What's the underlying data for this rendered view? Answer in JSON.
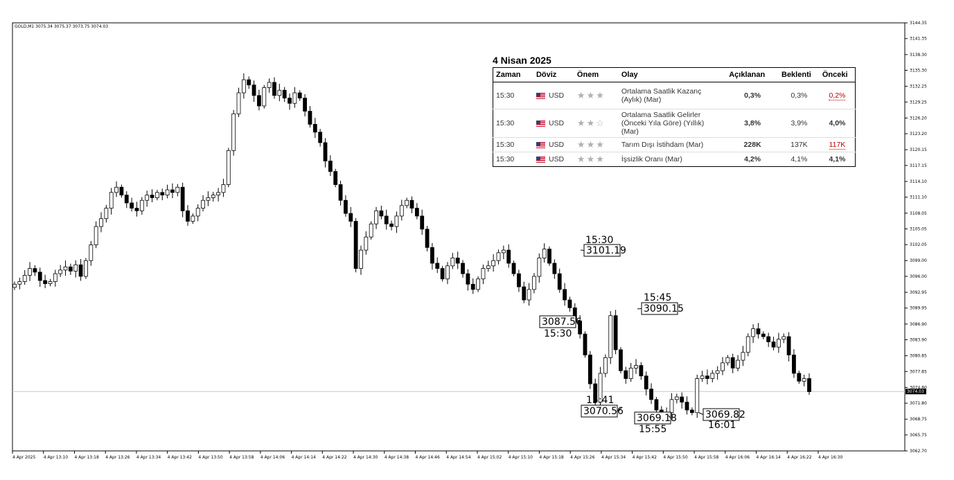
{
  "symbol_header": "GOLD,M1  3075.34 3075.37 3073.75 3074.03",
  "chart_data": {
    "type": "candlestick",
    "symbol": "GOLD",
    "timeframe": "M1",
    "ohlc_header": [
      3075.34,
      3075.37,
      3073.75,
      3074.03
    ],
    "current_price": 3074.03,
    "y_ticks": [
      3144.35,
      3141.35,
      3138.3,
      3135.3,
      3132.25,
      3129.25,
      3126.2,
      3123.2,
      3120.15,
      3117.15,
      3114.1,
      3111.1,
      3108.05,
      3105.05,
      3102.05,
      3099.0,
      3096.0,
      3092.95,
      3089.95,
      3086.9,
      3083.9,
      3080.85,
      3077.85,
      3074.8,
      3071.8,
      3068.75,
      3065.75,
      3062.7
    ],
    "ylim": [
      3062.7,
      3144.35
    ],
    "x_ticks": [
      "4 Apr 2025",
      "4 Apr 13:10",
      "4 Apr 13:18",
      "4 Apr 13:26",
      "4 Apr 13:34",
      "4 Apr 13:42",
      "4 Apr 13:50",
      "4 Apr 13:58",
      "4 Apr 14:06",
      "4 Apr 14:14",
      "4 Apr 14:22",
      "4 Apr 14:30",
      "4 Apr 14:38",
      "4 Apr 14:46",
      "4 Apr 14:54",
      "4 Apr 15:02",
      "4 Apr 15:10",
      "4 Apr 15:18",
      "4 Apr 15:26",
      "4 Apr 15:34",
      "4 Apr 15:42",
      "4 Apr 15:50",
      "4 Apr 15:58",
      "4 Apr 16:06",
      "4 Apr 16:14",
      "4 Apr 16:22",
      "4 Apr 16:30"
    ],
    "close_path": [
      3094.5,
      3095.0,
      3096.2,
      3097.5,
      3096.8,
      3095.2,
      3094.6,
      3095.0,
      3096.5,
      3097.2,
      3097.8,
      3097.0,
      3098.2,
      3096.0,
      3099.0,
      3102.0,
      3105.5,
      3107.0,
      3109.0,
      3112.0,
      3113.0,
      3111.5,
      3110.0,
      3109.0,
      3108.5,
      3110.5,
      3111.5,
      3111.0,
      3112.0,
      3111.5,
      3112.5,
      3112.0,
      3113.0,
      3108.5,
      3106.5,
      3107.5,
      3109.0,
      3110.5,
      3111.0,
      3111.5,
      3112.0,
      3113.5,
      3120.0,
      3127.0,
      3131.0,
      3133.5,
      3132.5,
      3130.5,
      3128.5,
      3132.0,
      3133.0,
      3130.5,
      3131.5,
      3130.0,
      3129.0,
      3131.0,
      3130.0,
      3127.5,
      3125.0,
      3123.5,
      3121.5,
      3118.0,
      3116.0,
      3113.5,
      3110.5,
      3108.0,
      3106.5,
      3097.5,
      3101.0,
      3103.5,
      3106.0,
      3108.5,
      3107.5,
      3106.0,
      3105.5,
      3107.5,
      3109.5,
      3110.5,
      3109.0,
      3107.5,
      3105.0,
      3101.5,
      3098.5,
      3097.5,
      3095.5,
      3098.0,
      3099.5,
      3098.5,
      3096.5,
      3094.5,
      3093.5,
      3095.5,
      3097.5,
      3098.0,
      3099.0,
      3100.5,
      3101.0,
      3098.5,
      3096.5,
      3094.0,
      3091.5,
      3093.5,
      3096.0,
      3099.5,
      3101.2,
      3098.5,
      3096.5,
      3093.5,
      3091.5,
      3090.0,
      3087.5,
      3085.0,
      3081.0,
      3075.5,
      3072.0,
      3077.5,
      3080.5,
      3088.5,
      3082.0,
      3078.0,
      3076.5,
      3078.5,
      3079.0,
      3077.0,
      3074.5,
      3072.5,
      3070.5,
      3069.5,
      3070.0,
      3072.5,
      3073.0,
      3072.0,
      3070.5,
      3070.0,
      3076.5,
      3077.0,
      3076.5,
      3077.5,
      3078.0,
      3079.5,
      3080.5,
      3078.5,
      3080.0,
      3081.5,
      3084.5,
      3086.0,
      3085.0,
      3084.5,
      3083.5,
      3082.5,
      3084.0,
      3084.5,
      3081.0,
      3077.5,
      3076.0,
      3076.5,
      3074.0
    ],
    "annotations": [
      {
        "time": "15:30",
        "price": "3101.19"
      },
      {
        "time": "15:30",
        "price": "3087.56"
      },
      {
        "time": "15:45",
        "price": "3090.15"
      },
      {
        "time": "15:41",
        "price": "3070.56"
      },
      {
        "time": "15:55",
        "price": "3069.18"
      },
      {
        "time": "16:01",
        "price": "3069.82"
      }
    ]
  },
  "calendar": {
    "title": "4 Nisan 2025",
    "headers": [
      "Zaman",
      "Döviz",
      "Önem",
      "Olay",
      "Açıklanan",
      "Beklenti",
      "Önceki"
    ],
    "rows": [
      {
        "time": "15:30",
        "currency": "USD",
        "importance": 3,
        "event": "Ortalama Saatlik Kazanç (Aylık) (Mar)",
        "actual": "0,3%",
        "forecast": "0,3%",
        "previous": "0,2%"
      },
      {
        "time": "15:30",
        "currency": "USD",
        "importance": 2,
        "event": "Ortalama Saatlik Gelirler (Önceki Yıla Göre) (Yıllık) (Mar)",
        "actual": "3,8%",
        "forecast": "3,9%",
        "previous": "4,0%"
      },
      {
        "time": "15:30",
        "currency": "USD",
        "importance": 3,
        "event": "Tarım Dışı İstihdam (Mar)",
        "actual": "228K",
        "forecast": "137K",
        "previous": "117K"
      },
      {
        "time": "15:30",
        "currency": "USD",
        "importance": 3,
        "event": "İşsizlik Oranı (Mar)",
        "actual": "4,2%",
        "forecast": "4,1%",
        "previous": "4,1%"
      }
    ]
  },
  "colors": {
    "bull": "#ffffff",
    "bear": "#000000",
    "actual_red": "#e3161d",
    "actual_green": "#1a9a3a",
    "grid_line": "#c8c8c8"
  }
}
